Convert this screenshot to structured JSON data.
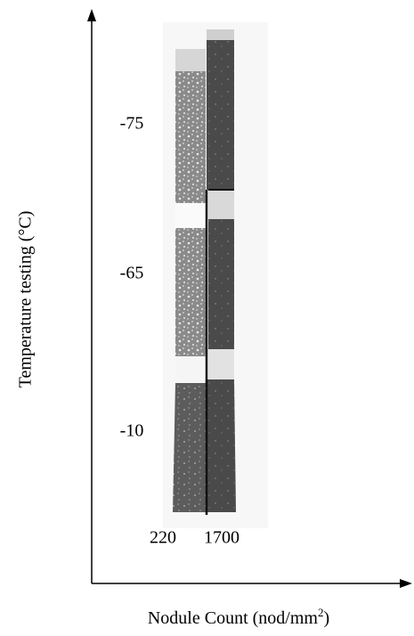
{
  "y_axis": {
    "title": "Temperature testing (°C)",
    "labels": [
      "-75",
      "-65",
      "-10"
    ]
  },
  "x_axis": {
    "title": "Nodule Count (nod/mm",
    "title_superscript": "2",
    "title_suffix": ")",
    "labels": [
      "220",
      "1700"
    ]
  }
}
